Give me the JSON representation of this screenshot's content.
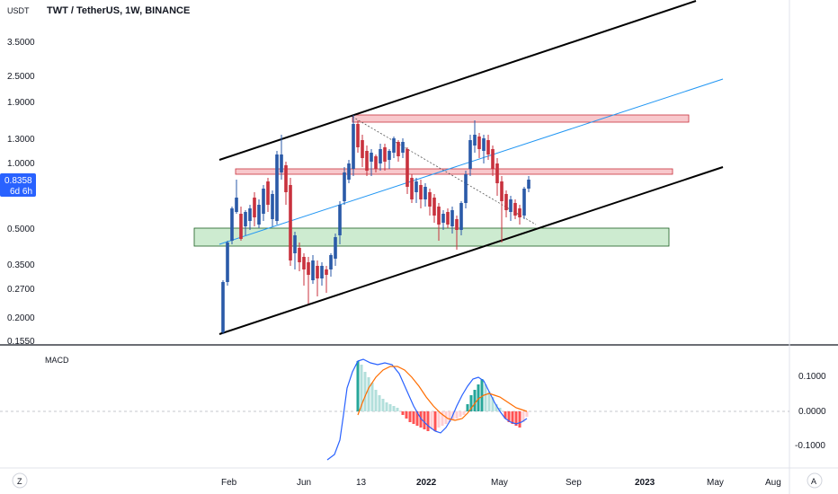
{
  "header": {
    "title": "TWT / TetherUS, 1W, BINANCE",
    "currency": "USDT"
  },
  "price_axis": {
    "labels": [
      "3.5000",
      "2.5000",
      "1.9000",
      "1.3000",
      "1.0000",
      "0.8358",
      "0.5000",
      "0.3500",
      "0.2700",
      "0.2000",
      "0.1550"
    ],
    "current_price": "0.8358",
    "countdown": "6d 6h"
  },
  "macd": {
    "label": "MACD",
    "axis_labels": [
      "0.1000",
      "0.0000",
      "-0.1000"
    ]
  },
  "time_axis": {
    "labels": [
      "Feb",
      "Jun",
      "13",
      "2022",
      "May",
      "Sep",
      "2023",
      "May",
      "Aug"
    ]
  },
  "bottom_bar": {
    "left_button": "Z",
    "right_button": "A"
  },
  "colors": {
    "up": "#2a5aa8",
    "down": "#c8313d",
    "price_badge": "#2962ff",
    "macd_line": "#2962ff",
    "signal_line": "#ff6d00",
    "hist_up_strong": "#26a69a",
    "hist_up_weak": "#b2dfdb",
    "hist_down_strong": "#ff5252",
    "hist_down_weak": "#ffcdd2",
    "resistance_fill": "#f8c8cc",
    "support_fill": "#cdebd0",
    "trend_line": "#000000",
    "mid_line": "#2196f3"
  },
  "chart_data": {
    "type": "candlestick",
    "symbol": "TWT / TetherUS",
    "interval": "1W",
    "scale": "log",
    "ylim": [
      0.15,
      5.5
    ]
  }
}
